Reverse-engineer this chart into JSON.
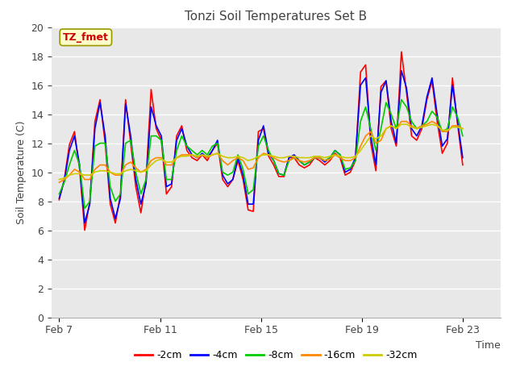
{
  "title": "Tonzi Soil Temperatures Set B",
  "xlabel": "Time",
  "ylabel": "Soil Temperature (C)",
  "ylim": [
    0,
    20
  ],
  "yticks": [
    0,
    2,
    4,
    6,
    8,
    10,
    12,
    14,
    16,
    18,
    20
  ],
  "xtick_labels": [
    "Feb 7",
    "Feb 11",
    "Feb 15",
    "Feb 19",
    "Feb 23"
  ],
  "xtick_positions": [
    0,
    4,
    8,
    12,
    16
  ],
  "xlim": [
    -0.3,
    17.5
  ],
  "figure_bg": "#ffffff",
  "plot_bg_color": "#e8e8e8",
  "grid_color": "#ffffff",
  "annotation_text": "TZ_fmet",
  "annotation_color": "#cc0000",
  "annotation_bg": "#ffffcc",
  "annotation_border": "#999900",
  "legend_entries": [
    "-2cm",
    "-4cm",
    "-8cm",
    "-16cm",
    "-32cm"
  ],
  "line_colors": [
    "#ff0000",
    "#0000ff",
    "#00cc00",
    "#ff8800",
    "#cccc00"
  ],
  "line_width": 1.2,
  "t_2cm": [
    8.1,
    9.5,
    11.9,
    12.8,
    10.2,
    6.0,
    8.0,
    13.5,
    15.0,
    12.0,
    7.8,
    6.5,
    8.5,
    15.0,
    12.0,
    9.0,
    7.2,
    9.5,
    15.7,
    13.0,
    12.2,
    8.5,
    9.0,
    12.5,
    13.2,
    11.5,
    11.0,
    10.8,
    11.2,
    10.8,
    11.5,
    12.0,
    9.5,
    9.0,
    9.5,
    10.8,
    9.5,
    7.4,
    7.3,
    12.8,
    13.0,
    11.1,
    10.5,
    9.7,
    9.7,
    11.0,
    11.0,
    10.5,
    10.3,
    10.5,
    11.0,
    10.8,
    10.5,
    10.8,
    11.3,
    11.0,
    9.8,
    10.0,
    10.8,
    16.9,
    17.4,
    12.0,
    10.1,
    15.9,
    16.3,
    13.0,
    11.8,
    18.3,
    15.5,
    12.5,
    12.2,
    13.0,
    15.0,
    16.3,
    13.5,
    11.3,
    12.0,
    16.5,
    13.3,
    10.5
  ],
  "t_4cm": [
    8.2,
    9.4,
    11.5,
    12.5,
    10.5,
    6.5,
    7.8,
    13.0,
    14.8,
    12.5,
    8.2,
    6.8,
    8.2,
    14.7,
    12.5,
    9.5,
    7.8,
    9.2,
    14.5,
    13.2,
    12.5,
    9.0,
    9.2,
    12.2,
    13.0,
    11.8,
    11.2,
    11.0,
    11.3,
    11.0,
    11.5,
    12.2,
    9.8,
    9.2,
    9.5,
    11.0,
    9.8,
    7.8,
    7.8,
    12.2,
    13.2,
    11.3,
    10.8,
    9.9,
    9.8,
    11.0,
    11.2,
    10.8,
    10.5,
    10.7,
    11.0,
    11.0,
    10.7,
    11.0,
    11.5,
    11.2,
    10.0,
    10.2,
    11.0,
    16.0,
    16.5,
    12.5,
    10.5,
    15.5,
    16.3,
    13.5,
    12.0,
    17.0,
    15.8,
    13.0,
    12.5,
    13.2,
    15.2,
    16.5,
    14.0,
    11.8,
    12.3,
    16.0,
    13.5,
    11.0
  ],
  "t_8cm": [
    8.5,
    9.3,
    10.5,
    11.5,
    10.5,
    7.5,
    8.0,
    11.8,
    12.0,
    12.0,
    9.0,
    8.0,
    8.5,
    12.0,
    12.2,
    10.0,
    8.5,
    9.5,
    12.5,
    12.5,
    12.2,
    9.5,
    9.5,
    11.5,
    12.5,
    11.8,
    11.5,
    11.2,
    11.5,
    11.2,
    11.8,
    12.0,
    10.0,
    9.8,
    10.0,
    11.2,
    10.2,
    8.5,
    8.8,
    11.8,
    12.5,
    11.5,
    10.8,
    9.9,
    9.8,
    10.8,
    11.0,
    10.8,
    10.5,
    10.7,
    11.0,
    11.0,
    10.8,
    11.0,
    11.5,
    11.2,
    10.2,
    10.3,
    10.8,
    13.5,
    14.5,
    13.0,
    11.5,
    13.0,
    14.8,
    14.0,
    13.0,
    15.0,
    14.5,
    13.5,
    13.0,
    13.2,
    13.5,
    14.2,
    13.8,
    12.8,
    13.0,
    14.5,
    13.8,
    12.5
  ],
  "t_16cm": [
    9.3,
    9.5,
    9.8,
    10.2,
    10.0,
    9.5,
    9.5,
    10.2,
    10.5,
    10.5,
    10.0,
    9.8,
    9.8,
    10.5,
    10.7,
    10.3,
    10.0,
    10.2,
    10.8,
    11.0,
    11.0,
    10.5,
    10.5,
    11.0,
    11.2,
    11.2,
    11.2,
    11.0,
    11.2,
    11.0,
    11.2,
    11.3,
    10.8,
    10.5,
    10.8,
    11.0,
    10.8,
    10.2,
    10.3,
    11.0,
    11.3,
    11.2,
    11.0,
    10.8,
    10.7,
    10.8,
    11.0,
    10.8,
    10.7,
    10.8,
    11.0,
    11.0,
    10.8,
    10.9,
    11.2,
    11.0,
    10.8,
    10.8,
    11.0,
    11.8,
    12.5,
    12.8,
    12.0,
    12.2,
    13.0,
    13.2,
    13.0,
    13.5,
    13.5,
    13.2,
    13.0,
    13.2,
    13.3,
    13.5,
    13.3,
    12.8,
    12.8,
    13.2,
    13.2,
    13.0
  ],
  "t_32cm": [
    9.5,
    9.6,
    9.8,
    9.9,
    9.9,
    9.8,
    9.8,
    10.0,
    10.1,
    10.1,
    10.0,
    9.9,
    9.9,
    10.1,
    10.2,
    10.1,
    10.0,
    10.1,
    10.5,
    10.8,
    10.9,
    10.7,
    10.7,
    11.0,
    11.1,
    11.1,
    11.2,
    11.1,
    11.2,
    11.1,
    11.2,
    11.3,
    11.1,
    11.0,
    11.0,
    11.1,
    11.0,
    10.8,
    10.9,
    11.1,
    11.2,
    11.2,
    11.1,
    11.0,
    11.0,
    11.1,
    11.1,
    11.0,
    11.0,
    11.0,
    11.1,
    11.1,
    11.0,
    11.1,
    11.2,
    11.1,
    11.0,
    11.0,
    11.1,
    11.5,
    12.0,
    12.5,
    12.3,
    12.5,
    13.0,
    13.2,
    13.0,
    13.3,
    13.3,
    13.1,
    13.0,
    13.1,
    13.2,
    13.3,
    13.2,
    12.9,
    12.9,
    13.1,
    13.1,
    13.0
  ]
}
